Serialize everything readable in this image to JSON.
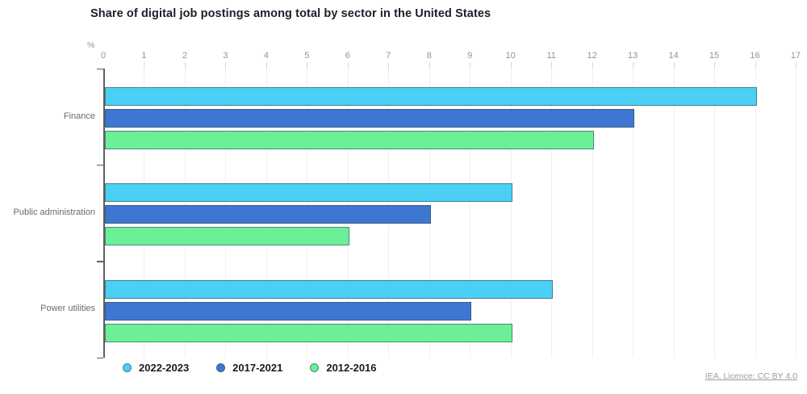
{
  "title": "Share of digital job postings among total by sector in the United States",
  "footer": {
    "license_text": "IEA. Licence: CC BY 4.0"
  },
  "axis": {
    "unit_label": "%",
    "min": 0,
    "max": 17,
    "tick_step": 1,
    "ticks": [
      0,
      1,
      2,
      3,
      4,
      5,
      6,
      7,
      8,
      9,
      10,
      11,
      12,
      13,
      14,
      15,
      16,
      17
    ]
  },
  "colors": {
    "series_2022_2023": "#4bd0f5",
    "series_2017_2021": "#3e77d1",
    "series_2012_2016": "#6cef97",
    "bar_border": "rgba(62,82,96,0.65)",
    "axis_line": "#5f5f5f",
    "gridline": "#efefef",
    "title_text": "#1d1d2b",
    "muted_text": "#8e8e8e"
  },
  "chart_data": {
    "type": "bar",
    "orientation": "horizontal",
    "title": "Share of digital job postings among total by sector in the United States",
    "xlabel": "%",
    "xlim": [
      0,
      17
    ],
    "grid": true,
    "legend_position": "bottom",
    "categories": [
      "Finance",
      "Public administration",
      "Power utilities"
    ],
    "series": [
      {
        "name": "2022-2023",
        "color": "#4bd0f5",
        "values": [
          16,
          10,
          11
        ]
      },
      {
        "name": "2017-2021",
        "color": "#3e77d1",
        "values": [
          13,
          8,
          9
        ]
      },
      {
        "name": "2012-2016",
        "color": "#6cef97",
        "values": [
          12,
          6,
          10
        ]
      }
    ]
  }
}
